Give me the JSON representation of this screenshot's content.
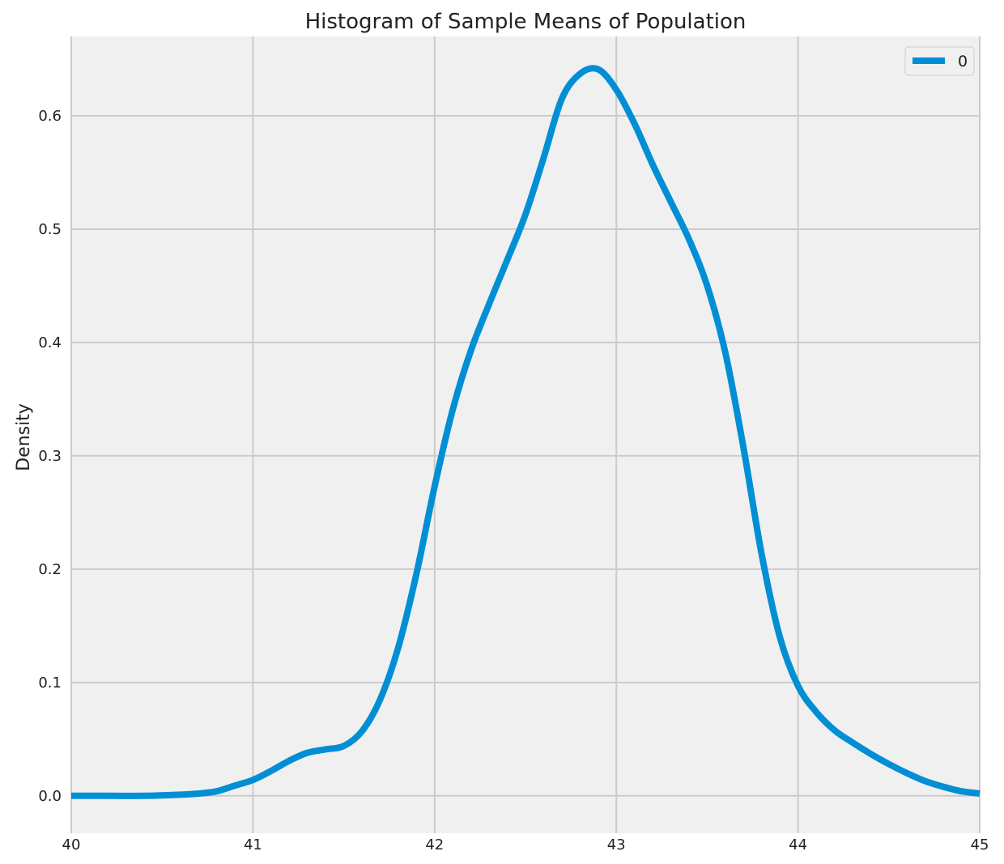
{
  "chart_data": {
    "type": "line",
    "title": "Histogram of Sample Means of Population",
    "xlabel": "",
    "ylabel": "Density",
    "xlim": [
      40,
      45
    ],
    "ylim": [
      -0.033,
      0.67
    ],
    "x_ticks": [
      "40",
      "41",
      "42",
      "43",
      "44",
      "45"
    ],
    "y_ticks": [
      "0.0",
      "0.1",
      "0.2",
      "0.3",
      "0.4",
      "0.5",
      "0.6"
    ],
    "grid": true,
    "legend_position": "top-right",
    "series": [
      {
        "name": "0",
        "color": "#008fd5",
        "x": [
          40.0,
          40.2,
          40.4,
          40.6,
          40.7,
          40.8,
          40.9,
          41.0,
          41.1,
          41.2,
          41.3,
          41.4,
          41.5,
          41.6,
          41.7,
          41.8,
          41.9,
          42.0,
          42.1,
          42.2,
          42.3,
          42.4,
          42.5,
          42.6,
          42.7,
          42.8,
          42.9,
          43.0,
          43.1,
          43.2,
          43.3,
          43.4,
          43.5,
          43.6,
          43.7,
          43.8,
          43.9,
          44.0,
          44.1,
          44.2,
          44.3,
          44.4,
          44.5,
          44.6,
          44.7,
          44.8,
          44.9,
          45.0
        ],
        "y": [
          0.0,
          0.0,
          0.0,
          0.001,
          0.002,
          0.004,
          0.009,
          0.014,
          0.022,
          0.031,
          0.038,
          0.041,
          0.044,
          0.057,
          0.085,
          0.131,
          0.196,
          0.273,
          0.341,
          0.393,
          0.434,
          0.473,
          0.513,
          0.563,
          0.615,
          0.637,
          0.641,
          0.623,
          0.593,
          0.557,
          0.524,
          0.491,
          0.45,
          0.391,
          0.307,
          0.213,
          0.14,
          0.097,
          0.074,
          0.058,
          0.047,
          0.037,
          0.028,
          0.02,
          0.013,
          0.008,
          0.004,
          0.002
        ]
      }
    ]
  }
}
